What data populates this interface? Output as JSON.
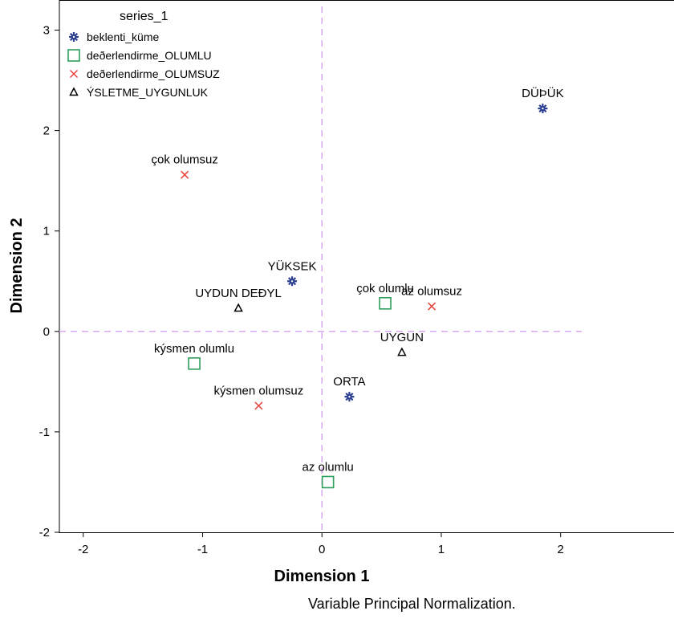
{
  "chart_data": {
    "type": "scatter",
    "xlabel": "Dimension 1",
    "ylabel": "Dimension 2",
    "xlim": [
      -2.2,
      2.95
    ],
    "ylim": [
      -2.0,
      3.3
    ],
    "xticks": [
      -2,
      -1,
      0,
      1,
      2
    ],
    "yticks": [
      -2,
      -1,
      0,
      1,
      2,
      3
    ],
    "reference_lines": {
      "x": 0,
      "y": 0,
      "style": "dashed",
      "color": "#d8a8f0"
    },
    "legend": {
      "title": "series_1",
      "position": "top-left"
    },
    "note": "Variable Principal Normalization.",
    "series": [
      {
        "name": "beklenti_küme",
        "marker": "asterisk",
        "color": "#2b3d8f",
        "points": [
          {
            "label": "DÜÞÜK",
            "x": 1.85,
            "y": 2.22
          },
          {
            "label": "YÜKSEK",
            "x": -0.25,
            "y": 0.5
          },
          {
            "label": "ORTA",
            "x": 0.23,
            "y": -0.65
          }
        ]
      },
      {
        "name": "deðerlendirme_OLUMLU",
        "marker": "square",
        "color": "#2e9e5b",
        "points": [
          {
            "label": "çok olumlu",
            "x": 0.53,
            "y": 0.28
          },
          {
            "label": "kýsmen olumlu",
            "x": -1.07,
            "y": -0.32
          },
          {
            "label": "az olumlu",
            "x": 0.05,
            "y": -1.5
          }
        ]
      },
      {
        "name": "deðerlendirme_OLUMSUZ",
        "marker": "x",
        "color": "#e8403a",
        "points": [
          {
            "label": "çok olumsuz",
            "x": -1.15,
            "y": 1.56
          },
          {
            "label": "az olumsuz",
            "x": 0.92,
            "y": 0.25
          },
          {
            "label": "kýsmen olumsuz",
            "x": -0.53,
            "y": -0.74
          }
        ]
      },
      {
        "name": "ÝSLETME_UYGUNLUK",
        "marker": "triangle",
        "color": "#000000",
        "points": [
          {
            "label": "UYDUN DEÐYL",
            "x": -0.7,
            "y": 0.23
          },
          {
            "label": "UYGUN",
            "x": 0.67,
            "y": -0.21
          }
        ]
      }
    ]
  }
}
